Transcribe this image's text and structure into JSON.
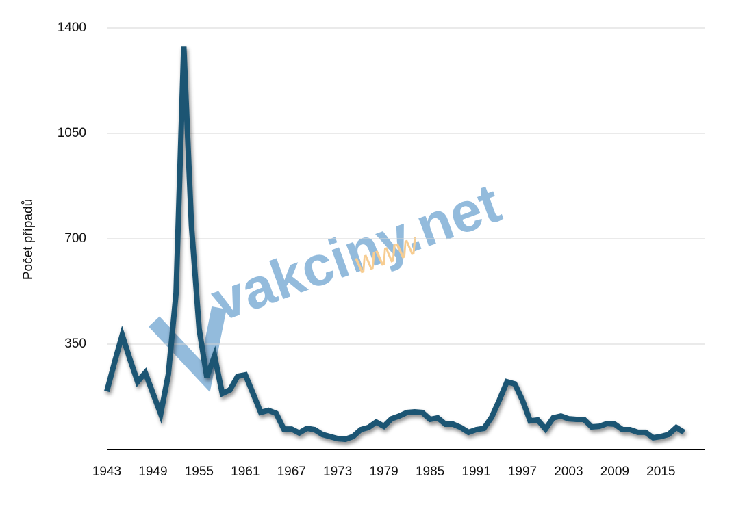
{
  "chart_data": {
    "type": "line",
    "y_label": "Počet případů",
    "watermark": {
      "text": "vakciny.net",
      "prefix": "www"
    },
    "x": [
      1943,
      1944,
      1945,
      1946,
      1947,
      1948,
      1949,
      1950,
      1951,
      1952,
      1953,
      1954,
      1955,
      1956,
      1957,
      1958,
      1959,
      1960,
      1961,
      1962,
      1963,
      1964,
      1965,
      1966,
      1967,
      1968,
      1969,
      1970,
      1971,
      1972,
      1973,
      1974,
      1975,
      1976,
      1977,
      1978,
      1979,
      1980,
      1981,
      1982,
      1983,
      1984,
      1985,
      1986,
      1987,
      1988,
      1989,
      1990,
      1991,
      1992,
      1993,
      1994,
      1995,
      1996,
      1997,
      1998,
      1999,
      2000,
      2001,
      2002,
      2003,
      2004,
      2005,
      2006,
      2007,
      2008,
      2009,
      2010,
      2011,
      2012,
      2013,
      2014,
      2015,
      2016,
      2017,
      2018
    ],
    "series": [
      {
        "name": "Počet případů",
        "color": "#1f5473",
        "values": [
          193,
          289,
          380,
          300,
          225,
          255,
          186,
          118,
          250,
          520,
          1340,
          743,
          400,
          240,
          311,
          186,
          198,
          243,
          248,
          186,
          123,
          130,
          120,
          68,
          68,
          55,
          70,
          66,
          50,
          43,
          36,
          34,
          43,
          66,
          73,
          91,
          77,
          102,
          111,
          123,
          125,
          123,
          100,
          105,
          84,
          84,
          73,
          57,
          66,
          70,
          107,
          164,
          225,
          218,
          164,
          95,
          98,
          68,
          105,
          111,
          102,
          100,
          100,
          75,
          77,
          86,
          84,
          66,
          66,
          57,
          57,
          39,
          43,
          50,
          73,
          57
        ]
      }
    ],
    "xlim": [
      1943,
      2018
    ],
    "xticks": [
      1943,
      1949,
      1955,
      1961,
      1967,
      1973,
      1979,
      1985,
      1991,
      1997,
      2003,
      2009,
      2015
    ],
    "ylim": [
      0,
      1400
    ],
    "yticks": [
      350,
      700,
      1050,
      1400
    ],
    "grid": true
  }
}
